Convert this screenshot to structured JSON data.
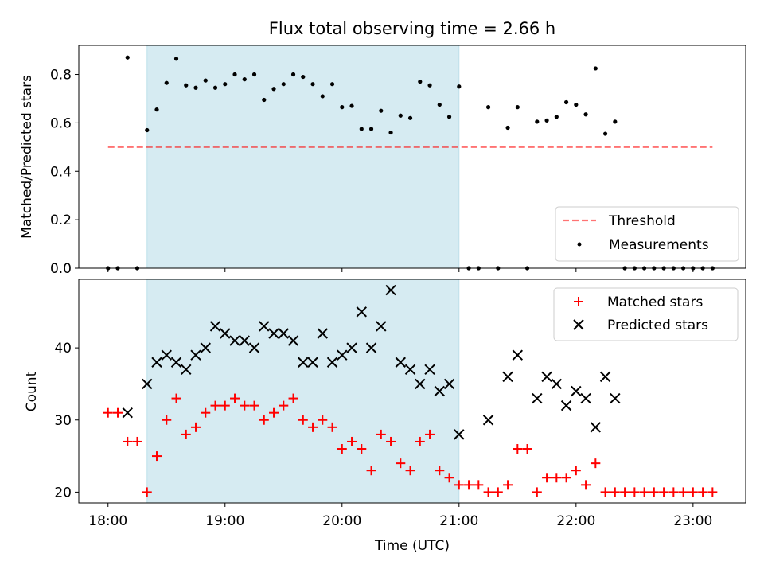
{
  "chart_data": [
    {
      "type": "scatter",
      "title": "Flux total observing time = 2.66 h",
      "ylabel": "Matched/Predicted stars",
      "xlim": [
        "17:45",
        "23:27"
      ],
      "ylim": [
        0,
        0.92
      ],
      "yticks": [
        0.0,
        0.2,
        0.4,
        0.6,
        0.8
      ],
      "shaded_span": {
        "start": "18:20",
        "end": "21:00",
        "color": "#add8e6"
      },
      "threshold": {
        "name": "Threshold",
        "value": 0.5,
        "x_range": [
          "18:00",
          "23:10"
        ],
        "color": "#ff0000"
      },
      "legend": {
        "position": "lower-right",
        "entries": [
          "Threshold",
          "Measurements"
        ]
      },
      "series": [
        {
          "name": "Measurements",
          "color": "#000000",
          "x": [
            "18:00",
            "18:05",
            "18:10",
            "18:15",
            "18:20",
            "18:25",
            "18:30",
            "18:35",
            "18:40",
            "18:45",
            "18:50",
            "18:55",
            "19:00",
            "19:05",
            "19:10",
            "19:15",
            "19:20",
            "19:25",
            "19:30",
            "19:35",
            "19:40",
            "19:45",
            "19:50",
            "19:55",
            "20:00",
            "20:05",
            "20:10",
            "20:15",
            "20:20",
            "20:25",
            "20:30",
            "20:35",
            "20:40",
            "20:45",
            "20:50",
            "20:55",
            "21:00",
            "21:05",
            "21:10",
            "21:15",
            "21:20",
            "21:25",
            "21:30",
            "21:35",
            "21:40",
            "21:45",
            "21:50",
            "21:55",
            "22:00",
            "22:05",
            "22:10",
            "22:15",
            "22:20",
            "22:25",
            "22:30",
            "22:35",
            "22:40",
            "22:45",
            "22:50",
            "22:55",
            "23:00",
            "23:05",
            "23:10"
          ],
          "y": [
            0,
            0,
            0.87,
            0,
            0.57,
            0.655,
            0.765,
            0.865,
            0.755,
            0.745,
            0.775,
            0.745,
            0.76,
            0.8,
            0.78,
            0.8,
            0.695,
            0.74,
            0.76,
            0.8,
            0.79,
            0.76,
            0.71,
            0.76,
            0.665,
            0.67,
            0.575,
            0.575,
            0.65,
            0.56,
            0.63,
            0.62,
            0.77,
            0.755,
            0.675,
            0.625,
            0.75,
            0,
            0,
            0.665,
            0,
            0.58,
            0.665,
            0,
            0.605,
            0.61,
            0.625,
            0.685,
            0.675,
            0.635,
            0.825,
            0.555,
            0.605,
            0,
            0,
            0,
            0,
            0,
            0,
            0,
            0,
            0,
            0
          ]
        }
      ]
    },
    {
      "type": "scatter",
      "xlabel": "Time (UTC)",
      "ylabel": "Count",
      "xlim": [
        "17:45",
        "23:27"
      ],
      "ylim": [
        18.5,
        49.5
      ],
      "xticks": [
        "18:00",
        "19:00",
        "20:00",
        "21:00",
        "22:00",
        "23:00"
      ],
      "yticks": [
        20,
        30,
        40
      ],
      "shaded_span": {
        "start": "18:20",
        "end": "21:00",
        "color": "#add8e6"
      },
      "legend": {
        "position": "upper-right",
        "entries": [
          "Matched stars",
          "Predicted stars"
        ]
      },
      "series": [
        {
          "name": "Matched stars",
          "marker": "plus",
          "color": "#ff0000",
          "x": [
            "18:00",
            "18:05",
            "18:10",
            "18:15",
            "18:20",
            "18:25",
            "18:30",
            "18:35",
            "18:40",
            "18:45",
            "18:50",
            "18:55",
            "19:00",
            "19:05",
            "19:10",
            "19:15",
            "19:20",
            "19:25",
            "19:30",
            "19:35",
            "19:40",
            "19:45",
            "19:50",
            "19:55",
            "20:00",
            "20:05",
            "20:10",
            "20:15",
            "20:20",
            "20:25",
            "20:30",
            "20:35",
            "20:40",
            "20:45",
            "20:50",
            "20:55",
            "21:00",
            "21:05",
            "21:10",
            "21:15",
            "21:20",
            "21:25",
            "21:30",
            "21:35",
            "21:40",
            "21:45",
            "21:50",
            "21:55",
            "22:00",
            "22:05",
            "22:10",
            "22:15",
            "22:20",
            "22:25",
            "22:30",
            "22:35",
            "22:40",
            "22:45",
            "22:50",
            "22:55",
            "23:00",
            "23:05",
            "23:10"
          ],
          "y": [
            31,
            31,
            27,
            27,
            20,
            25,
            30,
            33,
            28,
            29,
            31,
            32,
            32,
            33,
            32,
            32,
            30,
            31,
            32,
            33,
            30,
            29,
            30,
            29,
            26,
            27,
            26,
            23,
            28,
            27,
            24,
            23,
            27,
            28,
            23,
            22,
            21,
            21,
            21,
            20,
            20,
            21,
            26,
            26,
            20,
            22,
            22,
            22,
            23,
            21,
            24,
            20,
            20,
            20,
            20,
            20,
            20,
            20,
            20,
            20,
            20,
            20,
            20
          ]
        },
        {
          "name": "Predicted stars",
          "marker": "x",
          "color": "#000000",
          "x": [
            "18:10",
            "18:20",
            "18:25",
            "18:30",
            "18:35",
            "18:40",
            "18:45",
            "18:50",
            "18:55",
            "19:00",
            "19:05",
            "19:10",
            "19:15",
            "19:20",
            "19:25",
            "19:30",
            "19:35",
            "19:40",
            "19:45",
            "19:50",
            "19:55",
            "20:00",
            "20:05",
            "20:10",
            "20:15",
            "20:20",
            "20:25",
            "20:30",
            "20:35",
            "20:40",
            "20:45",
            "20:50",
            "20:55",
            "21:00",
            "21:15",
            "21:25",
            "21:30",
            "21:40",
            "21:45",
            "21:50",
            "21:55",
            "22:00",
            "22:05",
            "22:10",
            "22:15",
            "22:20"
          ],
          "y": [
            31,
            35,
            38,
            39,
            38,
            37,
            39,
            40,
            43,
            42,
            41,
            41,
            40,
            43,
            42,
            42,
            41,
            38,
            38,
            42,
            38,
            39,
            40,
            45,
            40,
            43,
            48,
            38,
            37,
            35,
            37,
            34,
            35,
            28,
            30,
            36,
            39,
            33,
            36,
            35,
            32,
            34,
            33,
            29,
            36,
            33
          ]
        }
      ]
    }
  ]
}
